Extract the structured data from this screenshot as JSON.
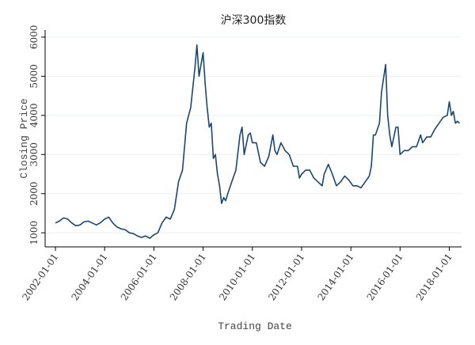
{
  "chart_data": {
    "type": "line",
    "title": "沪深300指数",
    "x_label": "Trading Date",
    "y_label": "Closing Price",
    "x": [
      "2002-01-01",
      "2002-03-01",
      "2002-05-01",
      "2002-07-01",
      "2002-09-01",
      "2002-11-01",
      "2003-01-01",
      "2003-03-01",
      "2003-05-01",
      "2003-07-01",
      "2003-09-01",
      "2003-11-01",
      "2004-01-01",
      "2004-03-01",
      "2004-05-01",
      "2004-07-01",
      "2004-09-01",
      "2004-11-01",
      "2005-01-01",
      "2005-03-01",
      "2005-05-01",
      "2005-07-01",
      "2005-09-01",
      "2005-11-01",
      "2006-01-01",
      "2006-03-01",
      "2006-05-01",
      "2006-07-01",
      "2006-09-01",
      "2006-11-01",
      "2007-01-01",
      "2007-03-01",
      "2007-05-01",
      "2007-07-01",
      "2007-09-01",
      "2007-10-01",
      "2007-11-01",
      "2007-12-01",
      "2008-01-01",
      "2008-02-01",
      "2008-03-01",
      "2008-04-01",
      "2008-05-01",
      "2008-06-01",
      "2008-07-01",
      "2008-08-01",
      "2008-09-01",
      "2008-10-01",
      "2008-11-01",
      "2008-12-01",
      "2009-01-01",
      "2009-03-01",
      "2009-05-01",
      "2009-07-01",
      "2009-08-01",
      "2009-09-01",
      "2009-11-01",
      "2009-12-01",
      "2010-01-01",
      "2010-03-01",
      "2010-05-01",
      "2010-07-01",
      "2010-09-01",
      "2010-11-01",
      "2010-12-01",
      "2011-01-01",
      "2011-03-01",
      "2011-05-01",
      "2011-07-01",
      "2011-09-01",
      "2011-11-01",
      "2011-12-01",
      "2012-01-01",
      "2012-03-01",
      "2012-05-01",
      "2012-07-01",
      "2012-09-01",
      "2012-11-01",
      "2012-12-01",
      "2013-02-01",
      "2013-04-01",
      "2013-06-01",
      "2013-08-01",
      "2013-10-01",
      "2013-12-01",
      "2014-02-01",
      "2014-04-01",
      "2014-06-01",
      "2014-08-01",
      "2014-10-01",
      "2014-11-01",
      "2014-12-01",
      "2015-01-01",
      "2015-03-01",
      "2015-04-01",
      "2015-06-01",
      "2015-07-01",
      "2015-08-01",
      "2015-09-01",
      "2015-11-01",
      "2015-12-01",
      "2016-01-01",
      "2016-03-01",
      "2016-05-01",
      "2016-07-01",
      "2016-09-01",
      "2016-11-01",
      "2016-12-01",
      "2017-02-01",
      "2017-04-01",
      "2017-06-01",
      "2017-08-01",
      "2017-10-01",
      "2017-12-01",
      "2018-01-01",
      "2018-02-01",
      "2018-03-01",
      "2018-04-01",
      "2018-05-01",
      "2018-06-01"
    ],
    "values": [
      1250,
      1300,
      1380,
      1350,
      1250,
      1180,
      1200,
      1280,
      1300,
      1250,
      1200,
      1260,
      1350,
      1400,
      1250,
      1150,
      1100,
      1080,
      1000,
      980,
      920,
      880,
      920,
      860,
      950,
      1000,
      1250,
      1400,
      1350,
      1600,
      2300,
      2600,
      3800,
      4200,
      5200,
      5800,
      5000,
      5300,
      5600,
      4800,
      4200,
      3700,
      3800,
      2900,
      3000,
      2500,
      2200,
      1750,
      1900,
      1820,
      2000,
      2300,
      2600,
      3500,
      3700,
      3000,
      3500,
      3550,
      3300,
      3300,
      2800,
      2700,
      2950,
      3500,
      3100,
      3000,
      3300,
      3100,
      3000,
      2700,
      2700,
      2400,
      2500,
      2600,
      2600,
      2400,
      2300,
      2200,
      2500,
      2750,
      2500,
      2200,
      2300,
      2450,
      2350,
      2200,
      2200,
      2150,
      2300,
      2450,
      2700,
      3500,
      3500,
      3800,
      4600,
      5300,
      4000,
      3500,
      3200,
      3700,
      3700,
      3000,
      3100,
      3100,
      3200,
      3200,
      3500,
      3300,
      3450,
      3450,
      3650,
      3800,
      3950,
      4000,
      4350,
      4000,
      4100,
      3800,
      3850,
      3800
    ],
    "color": "#1a476f",
    "xlim": [
      "2001-08-01",
      "2018-07-01"
    ],
    "xticks": [
      "2002-01-01",
      "2004-01-01",
      "2006-01-01",
      "2008-01-01",
      "2010-01-01",
      "2012-01-01",
      "2014-01-01",
      "2016-01-01",
      "2018-01-01"
    ],
    "ylim": [
      640,
      6180
    ],
    "yticks": [
      1000,
      2000,
      3000,
      4000,
      5000,
      6000
    ],
    "grid": true
  }
}
